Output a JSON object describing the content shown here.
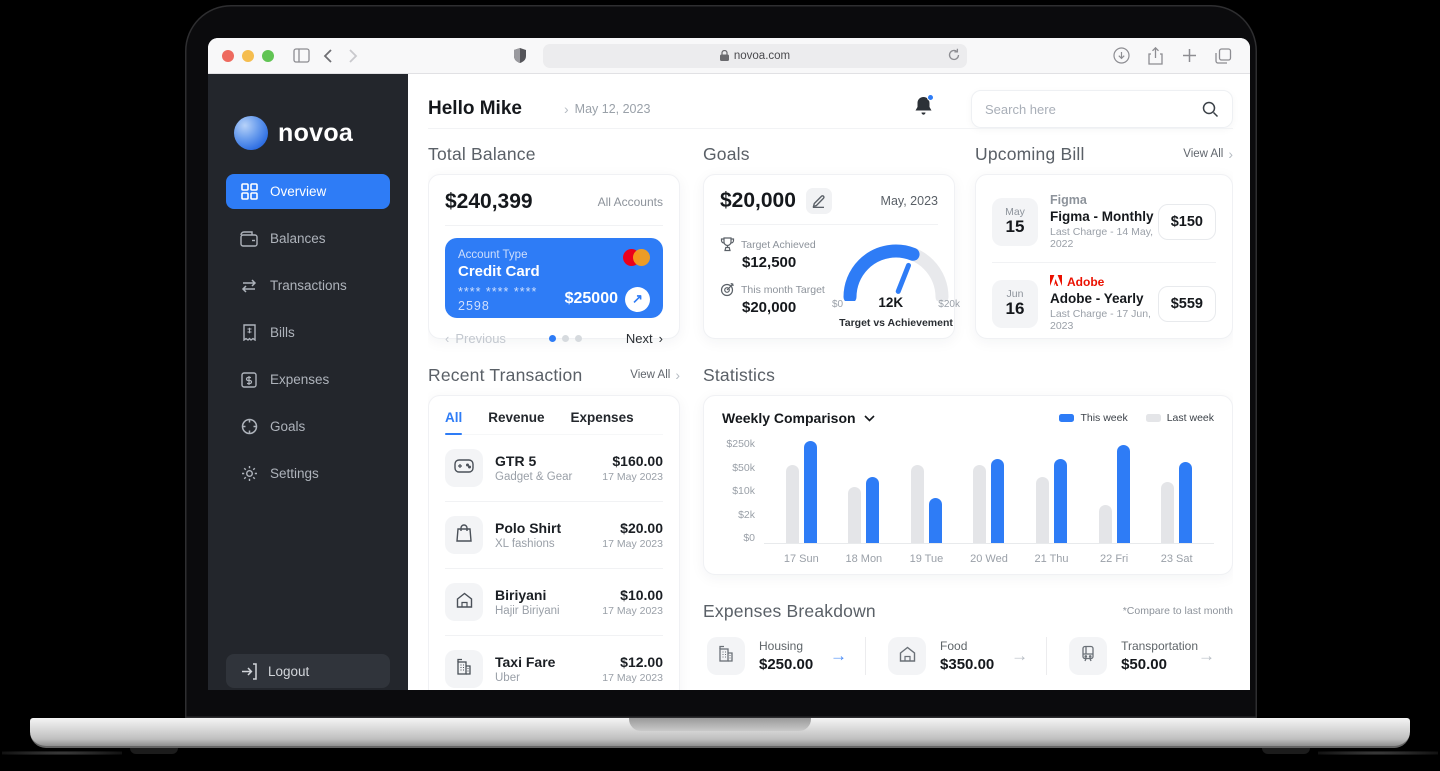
{
  "browser": {
    "url": "novoa.com"
  },
  "sidebar": {
    "logo_text": "novoa",
    "items": [
      {
        "label": "Overview",
        "icon": "grid-icon",
        "active": true
      },
      {
        "label": "Balances",
        "icon": "wallet-icon",
        "active": false
      },
      {
        "label": "Transactions",
        "icon": "arrows-swap-icon",
        "active": false
      },
      {
        "label": "Bills",
        "icon": "receipt-icon",
        "active": false
      },
      {
        "label": "Expenses",
        "icon": "dollar-square-icon",
        "active": false
      },
      {
        "label": "Goals",
        "icon": "target-icon",
        "active": false
      },
      {
        "label": "Settings",
        "icon": "gear-icon",
        "active": false
      }
    ],
    "logout_label": "Logout"
  },
  "header": {
    "greeting": "Hello Mike",
    "date": "May 12, 2023",
    "search_placeholder": "Search here"
  },
  "total_balance": {
    "title": "Total Balance",
    "amount": "$240,399",
    "accounts_label": "All Accounts",
    "card": {
      "type_label": "Account Type",
      "type_value": "Credit Card",
      "number": "**** **** **** 2598",
      "value": "$25000"
    },
    "pager": {
      "prev": "Previous",
      "next": "Next",
      "dots": [
        "on",
        "off",
        "off"
      ]
    }
  },
  "goals": {
    "title": "Goals",
    "amount": "$20,000",
    "month": "May, 2023",
    "target_achieved_label": "Target Achieved",
    "target_achieved_value": "$12,500",
    "month_target_label": "This month Target",
    "month_target_value": "$20,000",
    "gauge": {
      "min": "$0",
      "value": "12K",
      "max": "$20k",
      "caption": "Target vs Achievement",
      "percent": 62
    }
  },
  "upcoming_bill": {
    "title": "Upcoming Bill",
    "view_all": "View All",
    "bills": [
      {
        "month": "May",
        "day": "15",
        "brand": "Figma",
        "adobe": false,
        "name": "Figma - Monthly",
        "last_charge": "Last Charge - 14 May, 2022",
        "amount": "$150"
      },
      {
        "month": "Jun",
        "day": "16",
        "brand": "Adobe",
        "adobe": true,
        "name": "Adobe - Yearly",
        "last_charge": "Last Charge - 17 Jun, 2023",
        "amount": "$559"
      }
    ]
  },
  "recent_transactions": {
    "title": "Recent Transaction",
    "view_all": "View All",
    "tabs": [
      {
        "label": "All",
        "active": true
      },
      {
        "label": "Revenue",
        "active": false
      },
      {
        "label": "Expenses",
        "active": false
      }
    ],
    "items": [
      {
        "icon": "gamepad-icon",
        "name": "GTR 5",
        "category": "Gadget & Gear",
        "amount": "$160.00",
        "date": "17 May 2023"
      },
      {
        "icon": "shopping-bag-icon",
        "name": "Polo Shirt",
        "category": "XL fashions",
        "amount": "$20.00",
        "date": "17 May 2023"
      },
      {
        "icon": "home-icon",
        "name": "Biriyani",
        "category": "Hajir Biriyani",
        "amount": "$10.00",
        "date": "17 May 2023"
      },
      {
        "icon": "building-icon",
        "name": "Taxi Fare",
        "category": "Uber",
        "amount": "$12.00",
        "date": "17 May 2023"
      }
    ]
  },
  "statistics": {
    "title": "Statistics",
    "chart_data": {
      "type": "bar",
      "dropdown_label": "Weekly Comparison",
      "categories": [
        "17 Sun",
        "18 Mon",
        "19 Tue",
        "20 Wed",
        "21 Thu",
        "22 Fri",
        "23 Sat"
      ],
      "series": [
        {
          "name": "Last week",
          "color": "#e4e5e8",
          "values": [
            45000,
            12000,
            45000,
            45000,
            22000,
            4000,
            16000
          ]
        },
        {
          "name": "This week",
          "color": "#2e7cf6",
          "values": [
            200000,
            22000,
            6000,
            65000,
            65000,
            150000,
            55000
          ]
        }
      ],
      "y_ticks": [
        "$250k",
        "$50k",
        "$10k",
        "$2k",
        "$0"
      ],
      "y_scale_stops": [
        0,
        2000,
        10000,
        50000,
        250000
      ],
      "legend_position": "top-right",
      "grid": false
    }
  },
  "expenses_breakdown": {
    "title": "Expenses Breakdown",
    "note": "*Compare to last month",
    "items": [
      {
        "icon": "building-icon",
        "label": "Housing",
        "amount": "$250.00",
        "arrow": "blue"
      },
      {
        "icon": "home-icon",
        "label": "Food",
        "amount": "$350.00",
        "arrow": "gray"
      },
      {
        "icon": "bus-icon",
        "label": "Transportation",
        "amount": "$50.00",
        "arrow": "gray"
      }
    ]
  },
  "colors": {
    "accent": "#2e7cf6",
    "sidebar_bg": "#23262c",
    "adobe_red": "#eb1000",
    "mastercard_red": "#eb001b",
    "mastercard_orange": "#f79e1b"
  }
}
